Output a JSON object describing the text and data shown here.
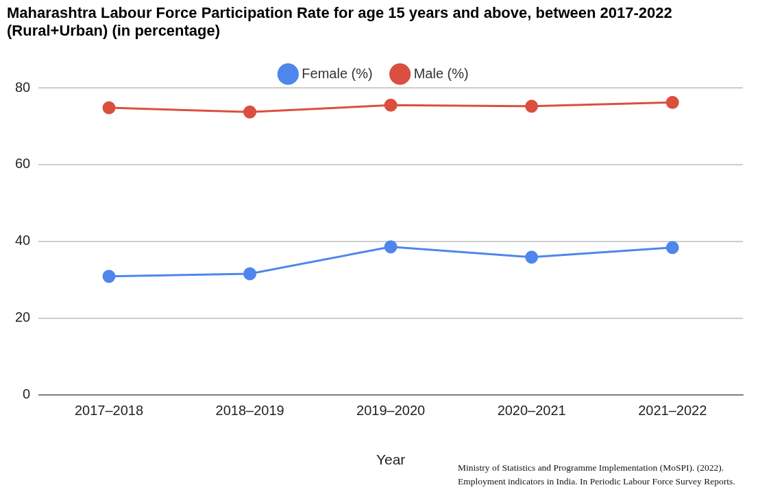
{
  "chart_data": {
    "type": "line",
    "title": "Maharashtra Labour Force Participation Rate for age 15 years and above, between 2017-2022 (Rural+Urban) (in percentage)",
    "xlabel": "Year",
    "categories": [
      "2017–2018",
      "2018–2019",
      "2019–2020",
      "2020–2021",
      "2021–2022"
    ],
    "series": [
      {
        "name": "Female (%)",
        "color": "#4f86ec",
        "values": [
          30.9,
          31.6,
          38.6,
          35.9,
          38.4
        ]
      },
      {
        "name": "Male (%)",
        "color": "#db4f3f",
        "values": [
          74.8,
          73.7,
          75.5,
          75.2,
          76.2
        ]
      }
    ],
    "ylim": [
      0,
      80
    ],
    "yticks": [
      0,
      20,
      40,
      60,
      80
    ],
    "grid": "y",
    "legend": "top",
    "marker": "circle",
    "annotations": [
      "Ministry of Statistics and Programme Implementation (MoSPI). (2022). Employment indicators in India. In Periodic Labour Force Survey Reports."
    ]
  }
}
